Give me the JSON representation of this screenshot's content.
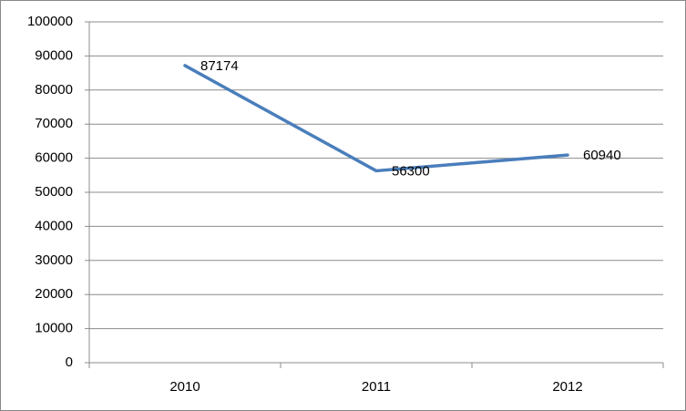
{
  "chart_data": {
    "type": "line",
    "categories": [
      "2010",
      "2011",
      "2012"
    ],
    "values": [
      87174,
      56300,
      60940
    ],
    "color": "#4a7ebb",
    "ylim": [
      0,
      100000
    ],
    "yticks": [
      0,
      10000,
      20000,
      30000,
      40000,
      50000,
      60000,
      70000,
      80000,
      90000,
      100000
    ],
    "grid": true
  }
}
